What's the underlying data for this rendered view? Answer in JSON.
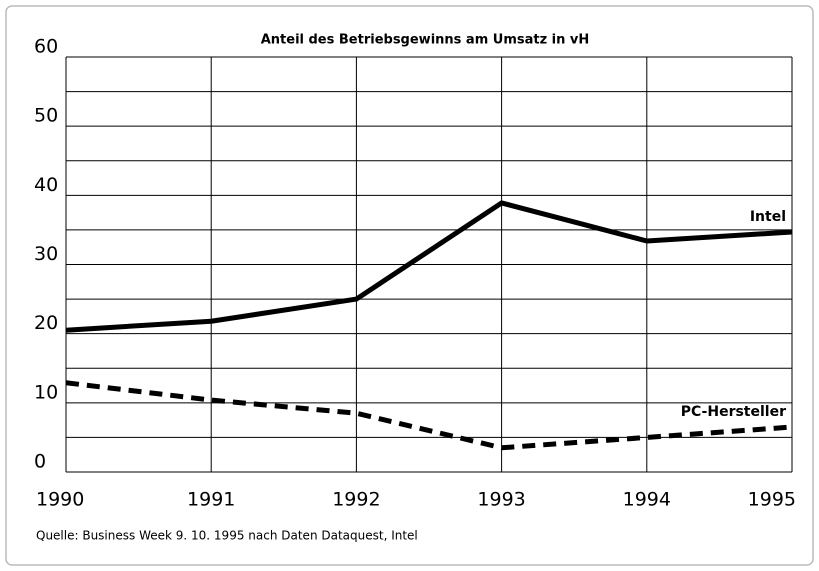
{
  "chart_data": {
    "type": "line",
    "title": "Anteil des Betriebsgewinns am Umsatz in vH",
    "source": "Quelle: Business Week 9. 10. 1995 nach Daten Dataquest, Intel",
    "x": [
      1990,
      1991,
      1992,
      1993,
      1994,
      1995
    ],
    "xlim": [
      1990,
      1995
    ],
    "xticks": [
      1990,
      1991,
      1992,
      1993,
      1994,
      1995
    ],
    "ylim": [
      0,
      60
    ],
    "yticks": [
      0,
      10,
      20,
      30,
      40,
      50,
      60
    ],
    "ygrid": [
      0,
      5,
      10,
      15,
      20,
      25,
      30,
      35,
      40,
      45,
      50,
      55,
      60
    ],
    "grid": true,
    "series": [
      {
        "name": "Intel",
        "color": "#000000",
        "style": "solid",
        "values": [
          20.5,
          21.8,
          25,
          38.9,
          33.4,
          34.7
        ]
      },
      {
        "name": "PC-Hersteller",
        "color": "#000000",
        "style": "dashed",
        "values": [
          12.9,
          10.4,
          8.5,
          3.5,
          5,
          6.5
        ]
      }
    ]
  }
}
